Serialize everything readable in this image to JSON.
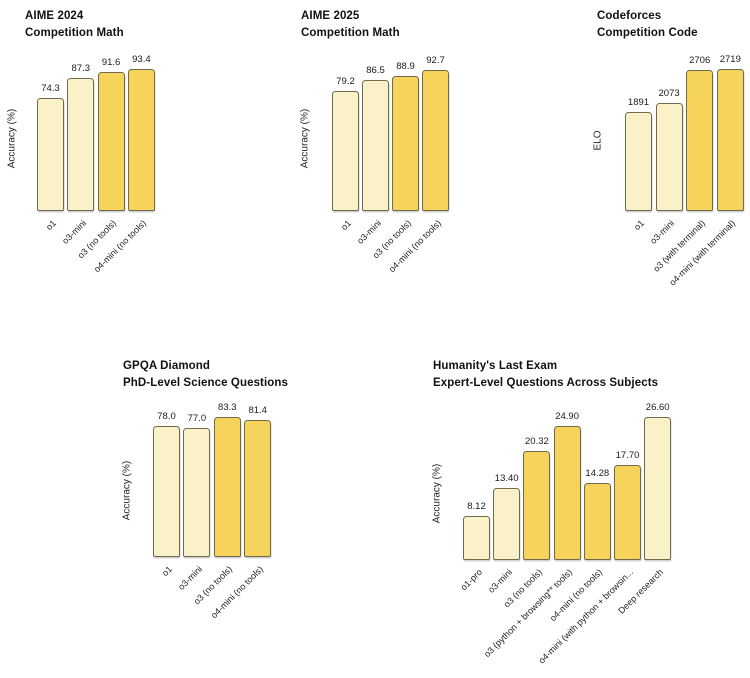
{
  "page": {
    "background": "#ffffff"
  },
  "palette": {
    "bar_light": "#faf1c8",
    "bar_gold": "#f6d35b",
    "bar_border": "#6f6a4e",
    "text": "#1a1a1a"
  },
  "chart_data": [
    {
      "type": "bar",
      "title_lines": [
        "AIME 2024",
        "Competition Math"
      ],
      "ylabel": "Accuracy (%)",
      "categories": [
        "o1",
        "o3-mini",
        "o3 (no tools)",
        "o4-mini (no tools)"
      ],
      "values": [
        74.3,
        87.3,
        91.6,
        93.4
      ],
      "value_labels": [
        "74.3",
        "87.3",
        "91.6",
        "93.4"
      ],
      "bar_tones": [
        "light",
        "light",
        "gold",
        "gold"
      ],
      "ylim": [
        0,
        100
      ],
      "grid": false,
      "legend": "none"
    },
    {
      "type": "bar",
      "title_lines": [
        "AIME 2025",
        "Competition Math"
      ],
      "ylabel": "Accuracy (%)",
      "categories": [
        "o1",
        "o3-mini",
        "o3 (no tools)",
        "o4-mini (no tools)"
      ],
      "values": [
        79.2,
        86.5,
        88.9,
        92.7
      ],
      "value_labels": [
        "79.2",
        "86.5",
        "88.9",
        "92.7"
      ],
      "bar_tones": [
        "light",
        "light",
        "gold",
        "gold"
      ],
      "ylim": [
        0,
        100
      ],
      "grid": false,
      "legend": "none"
    },
    {
      "type": "bar",
      "title_lines": [
        "Codeforces",
        "Competition Code"
      ],
      "ylabel": "ELO",
      "categories": [
        "o1",
        "o3-mini",
        "o3 (with terminal)",
        "o4-mini (with terminal)"
      ],
      "values": [
        1891,
        2073,
        2706,
        2719
      ],
      "value_labels": [
        "1891",
        "2073",
        "2706",
        "2719"
      ],
      "bar_tones": [
        "light",
        "light",
        "gold",
        "gold"
      ],
      "ylim": [
        0,
        2900
      ],
      "grid": false,
      "legend": "none"
    },
    {
      "type": "bar",
      "title_lines": [
        "GPQA Diamond",
        "PhD-Level Science Questions"
      ],
      "ylabel": "Accuracy (%)",
      "categories": [
        "o1",
        "o3-mini",
        "o3 (no tools)",
        "o4-mini (no tools)"
      ],
      "values": [
        78.0,
        77.0,
        83.3,
        81.4
      ],
      "value_labels": [
        "78.0",
        "77.0",
        "83.3",
        "81.4"
      ],
      "bar_tones": [
        "light",
        "light",
        "gold",
        "gold"
      ],
      "ylim": [
        0,
        100
      ],
      "grid": false,
      "legend": "none"
    },
    {
      "type": "bar",
      "title_lines": [
        "Humanity's Last Exam",
        "Expert-Level Questions Across Subjects"
      ],
      "ylabel": "Accuracy (%)",
      "categories": [
        "o1-pro",
        "o3-mini",
        "o3 (no tools)",
        "o3 (python + browsing** tools)",
        "o4-mini (no tools)",
        "o4-mini (with python + browsin...",
        "Deep research"
      ],
      "values": [
        8.12,
        13.4,
        20.32,
        24.9,
        14.28,
        17.7,
        26.6
      ],
      "value_labels": [
        "8.12",
        "13.40",
        "20.32",
        "24.90",
        "14.28",
        "17.70",
        "26.60"
      ],
      "bar_tones": [
        "light",
        "light",
        "gold",
        "gold",
        "gold",
        "gold",
        "light"
      ],
      "ylim": [
        0,
        28
      ],
      "grid": false,
      "legend": "none"
    }
  ]
}
